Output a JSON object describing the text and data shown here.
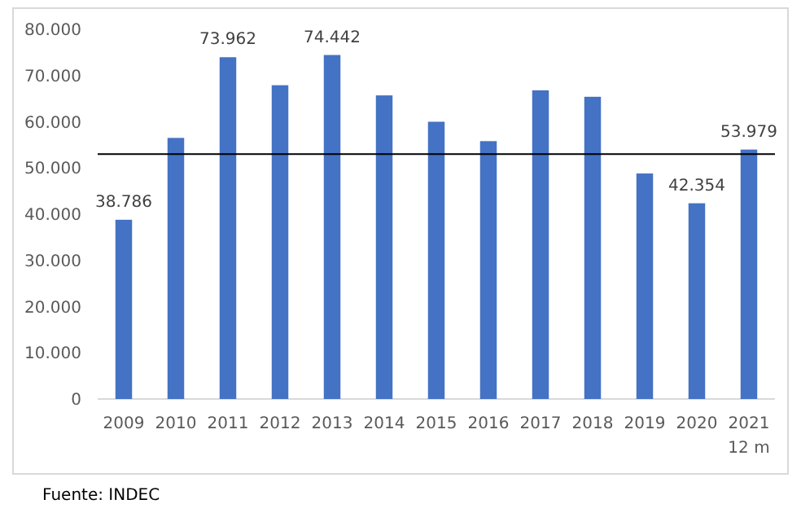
{
  "chart_data": {
    "type": "bar",
    "categories": [
      "2009",
      "2010",
      "2011",
      "2012",
      "2013",
      "2014",
      "2015",
      "2016",
      "2017",
      "2018",
      "2019",
      "2020",
      "2021\n12 m"
    ],
    "values": [
      38786,
      56500,
      73962,
      67900,
      74442,
      65700,
      60000,
      55800,
      66800,
      65400,
      48800,
      42354,
      53979
    ],
    "value_labels": [
      "38.786",
      null,
      "73.962",
      null,
      "74.442",
      null,
      null,
      null,
      null,
      null,
      null,
      "42.354",
      "53.979"
    ],
    "color": "#4472c4",
    "ylim": [
      0,
      80000
    ],
    "yticks": [
      {
        "value": 0,
        "label": "0"
      },
      {
        "value": 10000,
        "label": "10.000"
      },
      {
        "value": 20000,
        "label": "20.000"
      },
      {
        "value": 30000,
        "label": "30.000"
      },
      {
        "value": 40000,
        "label": "40.000"
      },
      {
        "value": 50000,
        "label": "50.000"
      },
      {
        "value": 60000,
        "label": "60.000"
      },
      {
        "value": 70000,
        "label": "70.000"
      },
      {
        "value": 80000,
        "label": "80.000"
      }
    ],
    "ref_lines": [
      {
        "axis": "y",
        "value": 53000,
        "color": "#000000"
      }
    ],
    "grid": false,
    "annotations": [
      "Fuente: INDEC"
    ]
  }
}
